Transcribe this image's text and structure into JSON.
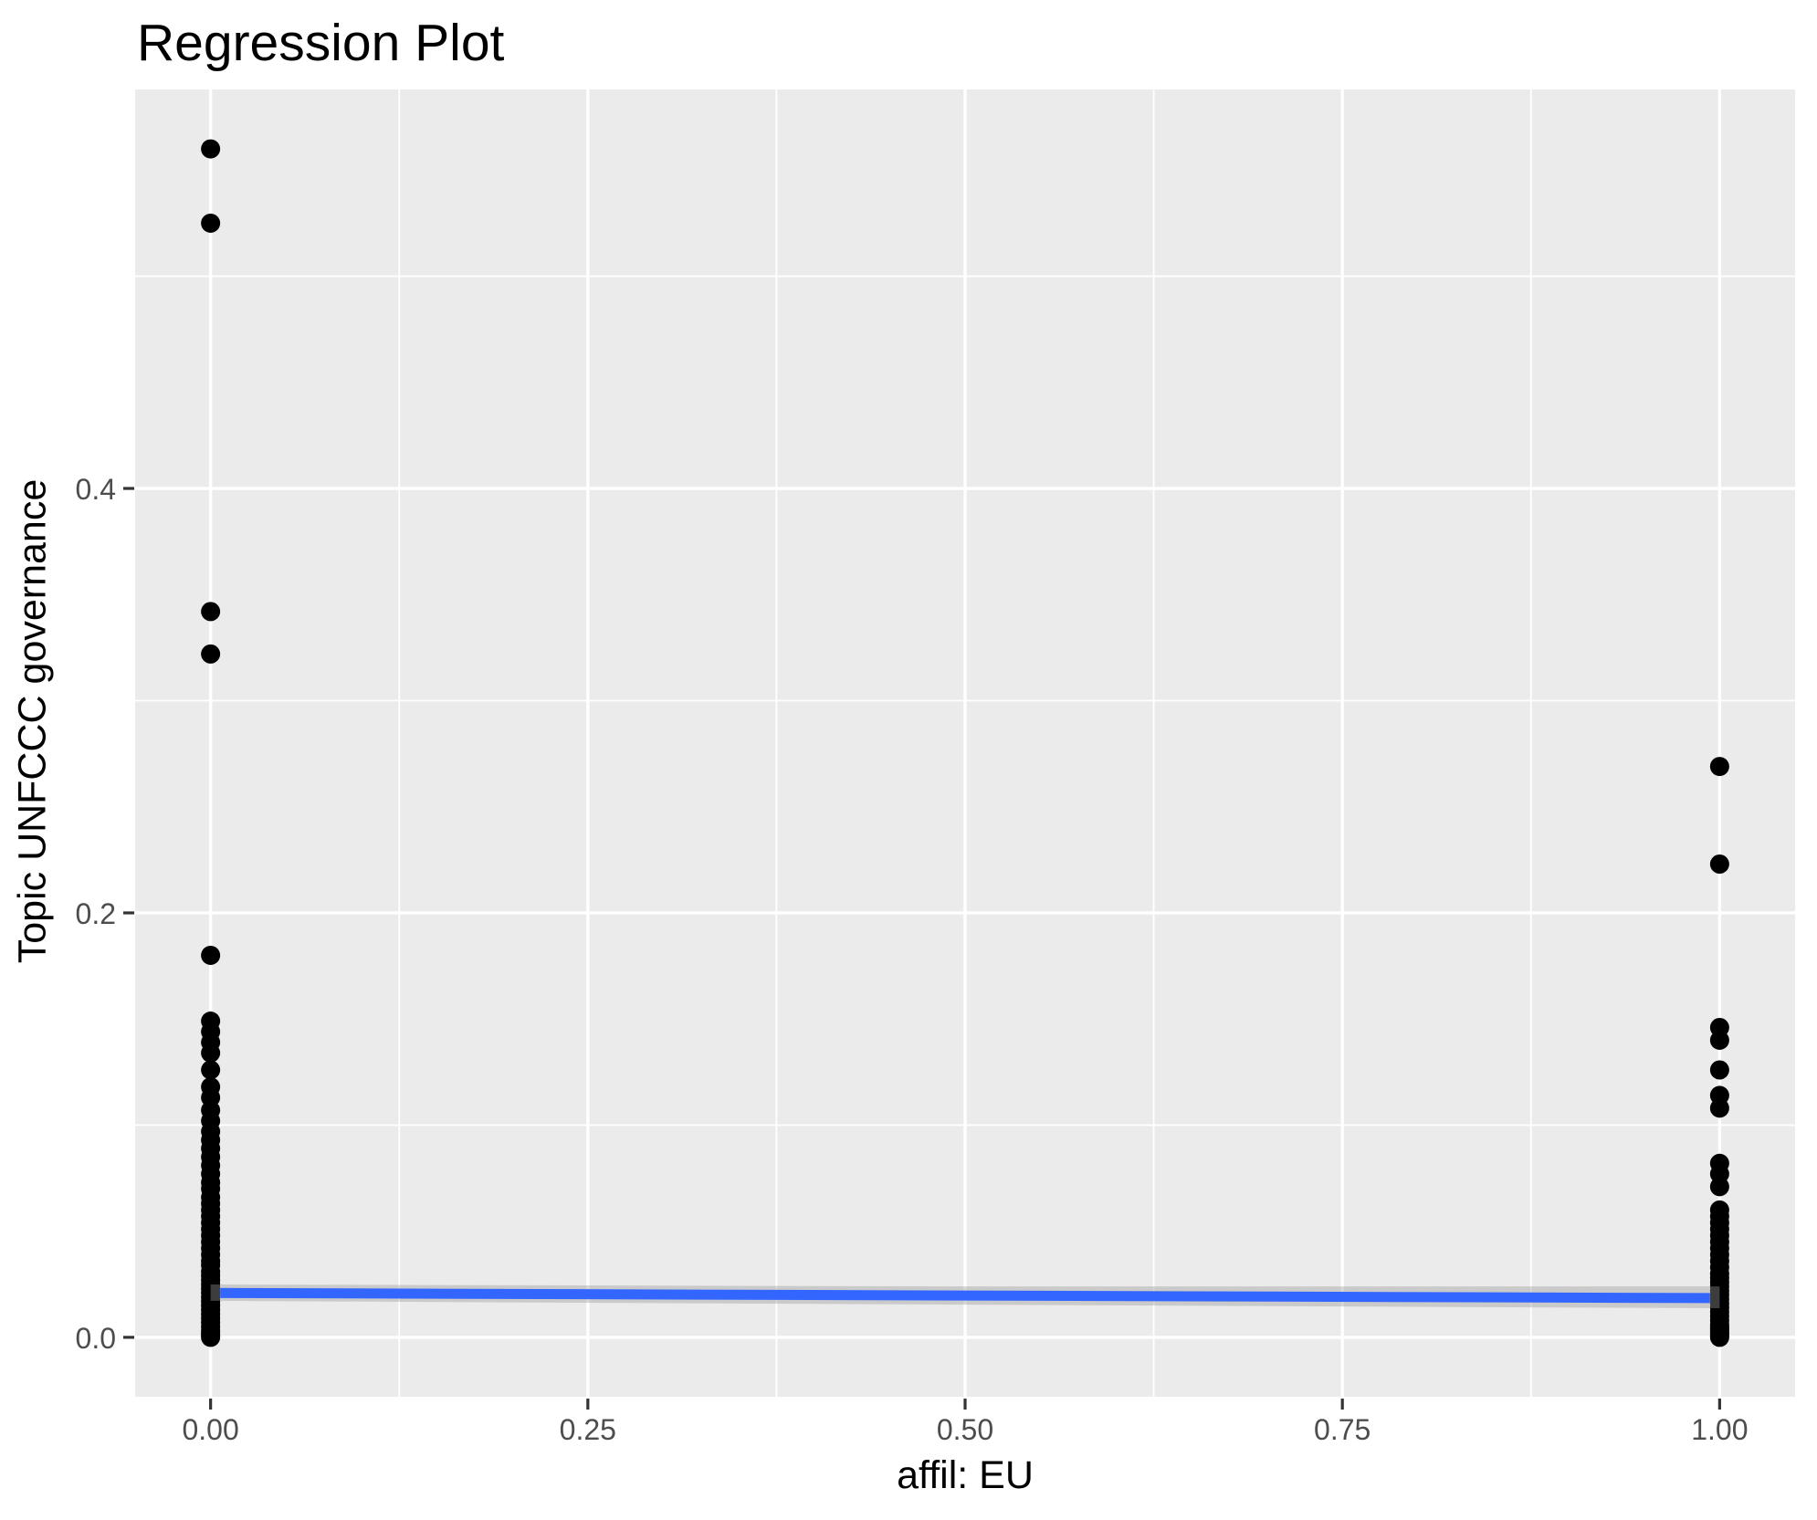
{
  "title": "Regression Plot",
  "chart_data": {
    "type": "scatter",
    "title": "Regression Plot",
    "xlabel": "affil: EU",
    "ylabel": "Topic UNFCCC governance",
    "xlim": [
      -0.05,
      1.05
    ],
    "ylim": [
      -0.028,
      0.588
    ],
    "x_ticks": [
      0,
      0.25,
      0.5,
      0.75,
      1
    ],
    "x_tick_labels": [
      "0.00",
      "0.25",
      "0.50",
      "0.75",
      "1.00"
    ],
    "y_ticks": [
      0,
      0.2,
      0.4
    ],
    "y_tick_labels": [
      "0.0",
      "0.2",
      "0.4"
    ],
    "x_minor_gridlines": [
      0.125,
      0.375,
      0.625,
      0.875
    ],
    "y_minor_gridlines": [
      0.1,
      0.3,
      0.5
    ],
    "grid": true,
    "legend": "none",
    "style": {
      "panel_bg": "#EBEBEB",
      "grid_color": "#FFFFFF",
      "major_grid_width": 3.4,
      "minor_grid_width": 1.8,
      "tick_color": "#333333",
      "tick_label_color": "#4D4D4D",
      "point_color": "#000000",
      "point_radius": 10.5,
      "line_color": "#3366FF",
      "line_width": 11,
      "ribbon_color": "rgba(153,153,153,0.4)"
    },
    "series": [
      {
        "name": "affil EU = 0",
        "x": 0,
        "y": [
          0.56,
          0.525,
          0.342,
          0.322,
          0.18,
          0.149,
          0.144,
          0.139,
          0.134,
          0.126,
          0.118,
          0.113,
          0.107,
          0.102,
          0.097,
          0.093,
          0.089,
          0.085,
          0.081,
          0.077,
          0.073,
          0.07,
          0.066,
          0.063,
          0.06,
          0.057,
          0.054,
          0.051,
          0.048,
          0.045,
          0.042,
          0.039,
          0.036,
          0.034,
          0.031,
          0.029,
          0.027,
          0.025,
          0.023,
          0.021,
          0.019,
          0.017,
          0.015,
          0.013,
          0.011,
          0.009,
          0.007,
          0.005,
          0.003,
          0.002,
          0.001,
          0.0
        ]
      },
      {
        "name": "affil EU = 1",
        "x": 1,
        "y": [
          0.269,
          0.223,
          0.146,
          0.14,
          0.126,
          0.114,
          0.108,
          0.082,
          0.077,
          0.071,
          0.06,
          0.057,
          0.054,
          0.051,
          0.048,
          0.045,
          0.042,
          0.039,
          0.036,
          0.033,
          0.03,
          0.028,
          0.026,
          0.024,
          0.022,
          0.02,
          0.018,
          0.016,
          0.014,
          0.012,
          0.01,
          0.008,
          0.006,
          0.005,
          0.004,
          0.003,
          0.002,
          0.001,
          0.0
        ]
      }
    ],
    "regression": {
      "x": [
        0,
        1
      ],
      "y": [
        0.0209,
        0.0185
      ],
      "ci_x": [
        0,
        0.5,
        1
      ],
      "ci_upper": [
        0.0249,
        0.024,
        0.024
      ],
      "ci_lower": [
        0.0172,
        0.0154,
        0.0137
      ]
    }
  }
}
